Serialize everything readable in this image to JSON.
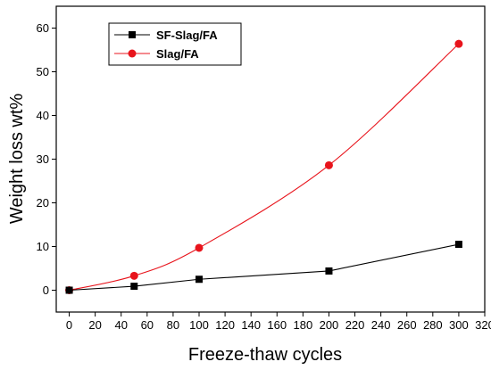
{
  "chart_data": {
    "type": "line",
    "title": "",
    "xlabel": "Freeze-thaw cycles",
    "ylabel": "Weight loss  wt%",
    "xlim": [
      -10,
      320
    ],
    "ylim": [
      -5,
      65
    ],
    "xticks": [
      0,
      20,
      40,
      60,
      80,
      100,
      120,
      140,
      160,
      180,
      200,
      220,
      240,
      260,
      280,
      300,
      320
    ],
    "yticks": [
      0,
      10,
      20,
      30,
      40,
      50,
      60
    ],
    "grid": false,
    "legend_position": "top-left",
    "series": [
      {
        "name": "SF-Slag/FA",
        "color": "#000000",
        "marker": "square",
        "x": [
          0,
          50,
          100,
          200,
          300
        ],
        "values": [
          0,
          0.9,
          2.5,
          4.4,
          10.5
        ]
      },
      {
        "name": "Slag/FA",
        "color": "#e8141c",
        "marker": "circle",
        "x": [
          0,
          50,
          100,
          200,
          300
        ],
        "values": [
          0,
          3.3,
          9.7,
          28.6,
          56.4
        ]
      }
    ]
  }
}
